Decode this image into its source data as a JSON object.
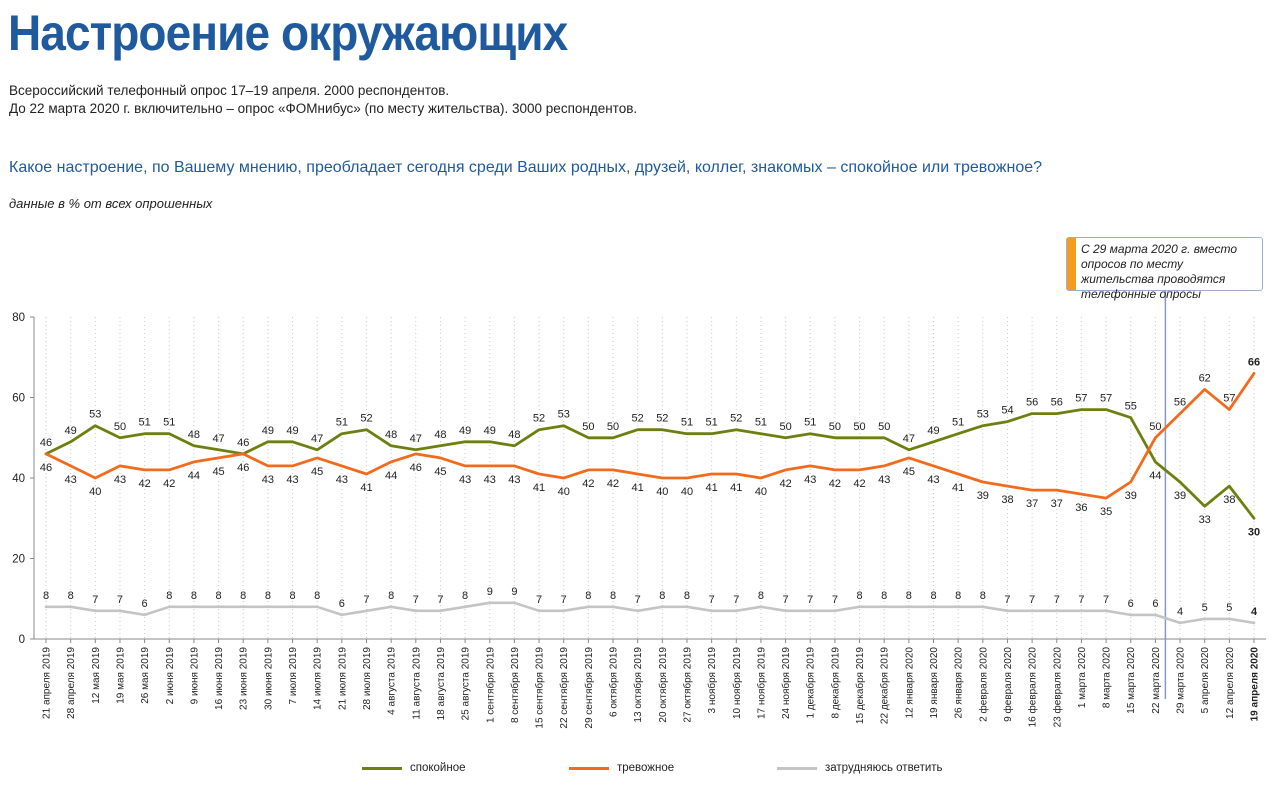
{
  "header": {
    "title": "Настроение окружающих",
    "subtitle_1": "Всероссийский телефонный опрос 17–19 апреля. 2000 респондентов.",
    "subtitle_2": "До 22 марта 2020 г. включительно – опрос «ФОМнибус» (по месту жительства). 3000 респондентов.",
    "question": "Какое настроение, по Вашему мнению, преобладает сегодня среди Ваших родных, друзей, коллег, знакомых – спокойное или тревожное?",
    "unit_note": "данные в % от всех опрошенных"
  },
  "annotation": {
    "text": "С 29 марта 2020 г. вместо опросов по месту жительства проводятся телефонные опросы",
    "accent_color": "#f39c1f",
    "after_category": "22 марта 2020"
  },
  "legend": {
    "items": [
      "спокойное",
      "тревожное",
      "затрудняюсь ответить"
    ]
  },
  "chart_data": {
    "type": "line",
    "title": "Настроение окружающих",
    "ylim": [
      0,
      80
    ],
    "yticks": [
      0,
      20,
      40,
      60,
      80
    ],
    "grid": "vertical dotted",
    "legend_position": "bottom",
    "categories": [
      "21 апреля 2019",
      "28 апреля 2019",
      "12 мая 2019",
      "19 мая 2019",
      "26 мая 2019",
      "2 июня 2019",
      "9 июня 2019",
      "16 июня 2019",
      "23 июня 2019",
      "30 июня 2019",
      "7 июля 2019",
      "14 июля 2019",
      "21 июля 2019",
      "28 июля 2019",
      "4 августа 2019",
      "11 августа 2019",
      "18 августа 2019",
      "25 августа 2019",
      "1 сентября 2019",
      "8 сентября 2019",
      "15 сентября 2019",
      "22 сентября 2019",
      "29 сентября 2019",
      "6 октября 2019",
      "13 октября 2019",
      "20 октября 2019",
      "27 октября 2019",
      "3 ноября 2019",
      "10 ноября 2019",
      "17 ноября 2019",
      "24 ноября 2019",
      "1 декабря 2019",
      "8 декабря 2019",
      "15 декабря 2019",
      "22 декабря 2019",
      "12 января 2020",
      "19 января 2020",
      "26 января 2020",
      "2 февраля 2020",
      "9 февраля 2020",
      "16 февраля 2020",
      "23 февраля 2020",
      "1 марта 2020",
      "8 марта 2020",
      "15 марта 2020",
      "22 марта 2020",
      "29 марта 2020",
      "5 апреля 2020",
      "12 апреля 2020",
      "19 апреля 2020"
    ],
    "series": [
      {
        "name": "спокойное",
        "color": "#6e7f10",
        "values": [
          46,
          49,
          53,
          50,
          51,
          51,
          48,
          47,
          46,
          49,
          49,
          47,
          51,
          52,
          48,
          47,
          48,
          49,
          49,
          48,
          52,
          53,
          50,
          50,
          52,
          52,
          51,
          51,
          52,
          51,
          50,
          51,
          50,
          50,
          50,
          47,
          49,
          51,
          53,
          54,
          56,
          56,
          57,
          57,
          55,
          44,
          39,
          33,
          38,
          30
        ]
      },
      {
        "name": "тревожное",
        "color": "#f26b1d",
        "values": [
          46,
          43,
          40,
          43,
          42,
          42,
          44,
          45,
          46,
          43,
          43,
          45,
          43,
          41,
          44,
          46,
          45,
          43,
          43,
          43,
          41,
          40,
          42,
          42,
          41,
          40,
          40,
          41,
          41,
          40,
          42,
          43,
          42,
          42,
          43,
          45,
          43,
          41,
          39,
          38,
          37,
          37,
          36,
          35,
          39,
          50,
          56,
          62,
          57,
          66
        ]
      },
      {
        "name": "затрудняюсь ответить",
        "color": "#c4c4c4",
        "values": [
          8,
          8,
          7,
          7,
          6,
          8,
          8,
          8,
          8,
          8,
          8,
          8,
          6,
          7,
          8,
          7,
          7,
          8,
          9,
          9,
          7,
          7,
          8,
          8,
          7,
          8,
          8,
          7,
          7,
          8,
          7,
          7,
          7,
          8,
          8,
          8,
          8,
          8,
          8,
          7,
          7,
          7,
          7,
          7,
          6,
          6,
          4,
          5,
          5,
          4
        ]
      }
    ]
  }
}
